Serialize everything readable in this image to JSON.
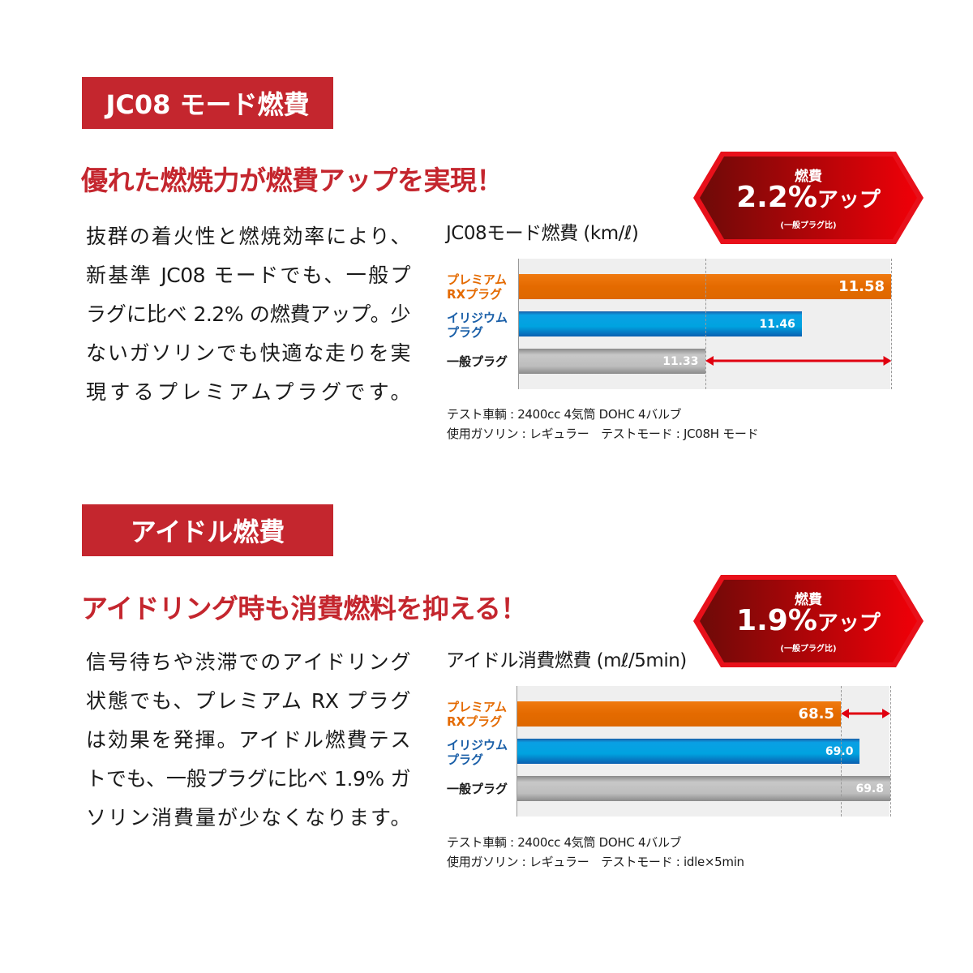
{
  "sections": [
    {
      "header": "JC08 モード燃費",
      "headline": "優れた燃焼力が燃費アップを実現！",
      "body_lines": [
        "抜群の着火性と燃焼効率により、",
        "新基準 JC08 モードでも、一般プ",
        "ラグに比べ 2.2% の燃費アップ。少",
        "ないガソリンでも快適な走りを実",
        "現するプレミアムプラグです。"
      ],
      "badge": {
        "top": "燃費",
        "value": "2.2%",
        "suffix": "アップ",
        "note": "(一般プラグ比)"
      },
      "notes": [
        "テスト車輌 : 2400cc 4気筒 DOHC 4バルブ",
        "使用ガソリン : レギュラー　テストモード : JC08H モード"
      ]
    },
    {
      "header": "アイドル燃費",
      "headline": "アイドリング時も消費燃料を抑える！",
      "body_lines": [
        "信号待ちや渋滞でのアイドリング",
        "状態でも、プレミアム RX プラグ",
        "は効果を発揮。アイドル燃費テス",
        "トでも、一般プラグに比べ 1.9% ガ",
        "ソリン消費量が少なくなります。"
      ],
      "badge": {
        "top": "燃費",
        "value": "1.9%",
        "suffix": "アップ",
        "note": "(一般プラグ比)"
      },
      "notes": [
        "テスト車輌 : 2400cc 4気筒 DOHC 4バルブ",
        "使用ガソリン : レギュラー　テストモード : idle×5min"
      ]
    }
  ],
  "colors": {
    "accent": "#c4262e",
    "premium": "#e46a00",
    "iridium": "#00a3e0",
    "standard": "#bdbdbd",
    "arrow": "#e00010"
  },
  "chart_data": [
    {
      "type": "bar",
      "orientation": "horizontal",
      "title": "JC08モード燃費 (km/ℓ)",
      "categories": [
        [
          "プレミアム",
          "RXプラグ"
        ],
        [
          "イリジウム",
          "プラグ"
        ],
        [
          "一般プラグ"
        ]
      ],
      "category_colors": [
        "#e46a00",
        "#1a5fa8",
        "#1a1a1a"
      ],
      "values": [
        11.58,
        11.46,
        11.33
      ],
      "value_labels": [
        "11.58",
        "11.46",
        "11.33"
      ],
      "xlim": [
        11.08,
        11.58
      ],
      "reference_lines": [
        11.33,
        11.58
      ],
      "arrow": [
        11.33,
        11.58
      ]
    },
    {
      "type": "bar",
      "orientation": "horizontal",
      "title": "アイドル消費燃費 (mℓ/5min)",
      "categories": [
        [
          "プレミアム",
          "RXプラグ"
        ],
        [
          "イリジウム",
          "プラグ"
        ],
        [
          "一般プラグ"
        ]
      ],
      "category_colors": [
        "#e46a00",
        "#1a5fa8",
        "#1a1a1a"
      ],
      "values": [
        68.5,
        69.0,
        69.8
      ],
      "value_labels": [
        "68.5",
        "69.0",
        "69.8"
      ],
      "xlim": [
        60,
        69.8
      ],
      "reference_lines": [
        68.5,
        69.8
      ],
      "arrow": [
        68.5,
        69.8
      ]
    }
  ]
}
